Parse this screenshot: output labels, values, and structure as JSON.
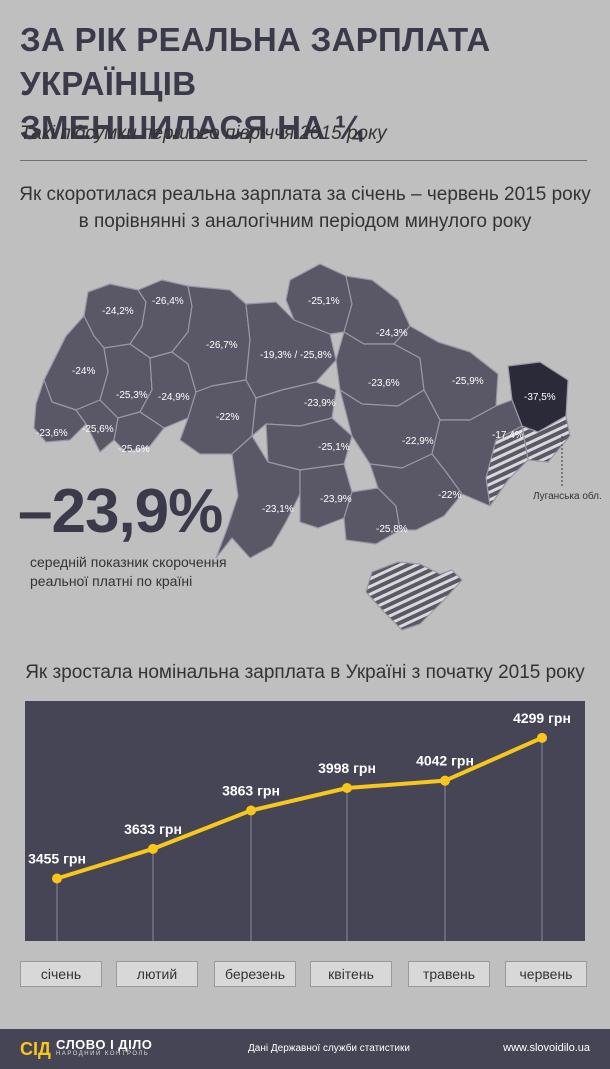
{
  "header": {
    "title": "ЗА РІК РЕАЛЬНА ЗАРПЛАТА УКРАЇНЦІВ ЗМЕНШИЛАСЯ НА ¼",
    "subtitle": "Такі підсумки першого півріччя 2015 року"
  },
  "map_section": {
    "heading": "Як скоротилася реальна зарплата за січень – червень 2015 року в порівнянні з аналогічним періодом минулого року",
    "regions": [
      {
        "label": "-24,2%"
      },
      {
        "label": "-26,4%"
      },
      {
        "label": "-25,1%"
      },
      {
        "label": "-24,3%"
      },
      {
        "label": "-26,7%"
      },
      {
        "label": "-19,3% / -25,8%"
      },
      {
        "label": "-24%"
      },
      {
        "label": "-25,3%"
      },
      {
        "label": "-24,9%"
      },
      {
        "label": "-23,6%"
      },
      {
        "label": "-25,9%"
      },
      {
        "label": "-37,5%"
      },
      {
        "label": "-23,9%"
      },
      {
        "label": "-22%"
      },
      {
        "label": "-23,6%"
      },
      {
        "label": "-25,6%"
      },
      {
        "label": "-25,6%"
      },
      {
        "label": "-25,1%"
      },
      {
        "label": "-22,9%"
      },
      {
        "label": "-17,4%"
      },
      {
        "label": "-23,1%"
      },
      {
        "label": "-23,9%"
      },
      {
        "label": "-22%"
      },
      {
        "label": "-25,8%"
      }
    ],
    "luhansk_label": "Луганська обл.",
    "average_value": "–23,9%",
    "average_caption": "середній показник скорочення реальної платні по країні",
    "colors": {
      "region": "#5a5766",
      "highlight": "#2b2a38",
      "border": "#9a98a8"
    }
  },
  "chart_data": {
    "type": "line",
    "title": "Як зростала номінальна зарплата в Україні з початку 2015 року",
    "categories": [
      "січень",
      "лютий",
      "березень",
      "квітень",
      "травень",
      "червень"
    ],
    "values": [
      3455,
      3633,
      3863,
      3998,
      4042,
      4299
    ],
    "value_labels": [
      "3455 грн",
      "3633 грн",
      "3863 грн",
      "3998 грн",
      "4042 грн",
      "4299 грн"
    ],
    "ylim": [
      3200,
      4400
    ],
    "grid": false,
    "line_color": "#f7c81b",
    "background_color": "#464556"
  },
  "footer": {
    "logo_name": "СЛОВО І ДІЛО",
    "logo_tag": "НАРОДНИЙ КОНТРОЛЬ",
    "logo_mark": "СІД",
    "source": "Дані Державної служби статистики",
    "site": "www.slovoidilo.ua"
  }
}
